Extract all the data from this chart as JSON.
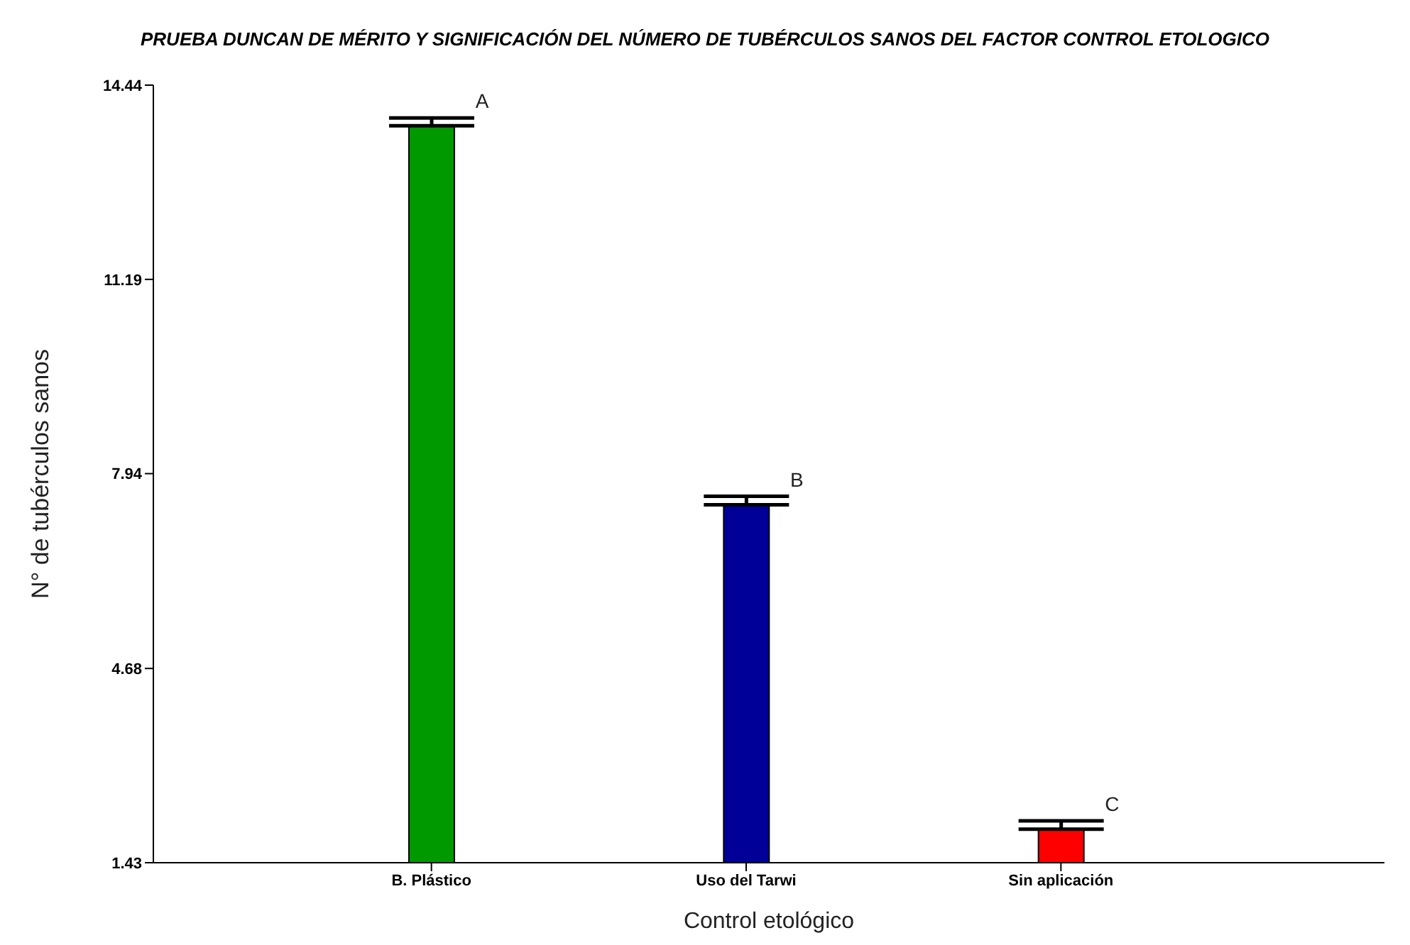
{
  "chart_data": {
    "type": "bar",
    "title": "PRUEBA DUNCAN DE MÉRITO Y SIGNIFICACIÓN DEL NÚMERO DE TUBÉRCULOS SANOS DEL FACTOR CONTROL ETOLOGICO",
    "xlabel": "Control etológico",
    "ylabel": "N° de tubérculos sanos",
    "categories": [
      "B. Plástico",
      "Uso del Tarwi",
      "Sin aplicación"
    ],
    "values": [
      13.76,
      7.42,
      1.99
    ],
    "colors": [
      "#009900",
      "#000099",
      "#ff0000"
    ],
    "errors": [
      [
        13.76,
        13.89
      ],
      [
        7.42,
        7.56
      ],
      [
        1.99,
        2.13
      ]
    ],
    "ylim": [
      1.43,
      14.44
    ],
    "yticks": [
      14.44,
      11.19,
      7.94,
      4.68,
      1.43
    ],
    "grid": false,
    "legend": false,
    "annotations": [
      {
        "text": "A",
        "x": "B. Plástico",
        "y": 13.89
      },
      {
        "text": "B",
        "x": "Uso del Tarwi",
        "y": 7.56
      },
      {
        "text": "C",
        "x": "Sin aplicación",
        "y": 2.13
      }
    ]
  }
}
